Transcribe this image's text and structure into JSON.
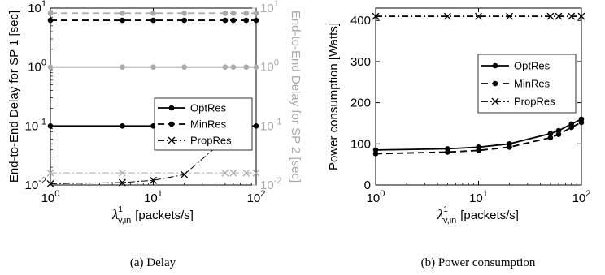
{
  "chart_data": [
    {
      "type": "line",
      "caption": "(a)  Delay",
      "xlabel_symbol": "λ",
      "xlabel_sup": "1",
      "xlabel_sub": "v,in",
      "xlabel_unit": "[packets/s]",
      "ylabel_left": "End-to-End Delay for SP 1 [sec]",
      "ylabel_right": "End-to-End Delay for SP 2 [sec]",
      "xscale": "log",
      "yscale": "log",
      "xlim": [
        1,
        100
      ],
      "ylim": [
        0.01,
        10
      ],
      "xticks": [
        1,
        10,
        100
      ],
      "xtick_labels": [
        {
          "base": "10",
          "exp": "0"
        },
        {
          "base": "10",
          "exp": "1"
        },
        {
          "base": "10",
          "exp": "2"
        }
      ],
      "yticks": [
        0.01,
        0.1,
        1,
        10
      ],
      "ytick_labels": [
        {
          "base": "10",
          "exp": "-2"
        },
        {
          "base": "10",
          "exp": "-1"
        },
        {
          "base": "10",
          "exp": "0"
        },
        {
          "base": "10",
          "exp": "1"
        }
      ],
      "grid": false,
      "legend_position": "right",
      "series": [
        {
          "name": "OptRes",
          "axis": "left",
          "color": "#000000",
          "style": "solid",
          "marker": "dot",
          "x": [
            1,
            5,
            10,
            20,
            50,
            60,
            80,
            100
          ],
          "y": [
            0.1,
            0.1,
            0.1,
            0.1,
            0.1,
            0.1,
            0.1,
            0.1
          ]
        },
        {
          "name": "MinRes",
          "axis": "left",
          "color": "#000000",
          "style": "dashed",
          "marker": "dot",
          "x": [
            1,
            5,
            10,
            20,
            50,
            60,
            80,
            100
          ],
          "y": [
            6.2,
            6.2,
            6.2,
            6.2,
            6.2,
            6.2,
            6.2,
            6.2
          ]
        },
        {
          "name": "PropRes",
          "axis": "left",
          "color": "#000000",
          "style": "dashdot",
          "marker": "x",
          "x": [
            1,
            5,
            10,
            20,
            50
          ],
          "y": [
            0.0105,
            0.011,
            0.012,
            0.015,
            0.06
          ]
        },
        {
          "axis": "right",
          "color": "#aaaaaa",
          "style": "solid",
          "marker": "dot",
          "x": [
            1,
            5,
            10,
            20,
            50,
            60,
            80,
            100
          ],
          "y": [
            1,
            1,
            1,
            1,
            1,
            1,
            1,
            1
          ]
        },
        {
          "axis": "right",
          "color": "#aaaaaa",
          "style": "dashed",
          "marker": "dot",
          "x": [
            1,
            5,
            10,
            20,
            50,
            60,
            80,
            100
          ],
          "y": [
            8.2,
            8.2,
            8.2,
            8.2,
            8.2,
            8.2,
            8.2,
            8.2
          ]
        },
        {
          "axis": "right",
          "color": "#aaaaaa",
          "style": "dashdot",
          "marker": "x",
          "x": [
            1,
            5,
            50,
            60,
            80,
            100
          ],
          "y": [
            0.016,
            0.016,
            0.016,
            0.016,
            0.016,
            0.016
          ]
        }
      ]
    },
    {
      "type": "line",
      "caption": "(b)  Power consumption",
      "xlabel_symbol": "λ",
      "xlabel_sup": "1",
      "xlabel_sub": "v,in",
      "xlabel_unit": "[packets/s]",
      "ylabel": "Power consumption [Watts]",
      "xscale": "log",
      "yscale": "linear",
      "xlim": [
        1,
        100
      ],
      "ylim": [
        0,
        430
      ],
      "xticks": [
        1,
        10,
        100
      ],
      "xtick_labels": [
        {
          "base": "10",
          "exp": "0"
        },
        {
          "base": "10",
          "exp": "1"
        },
        {
          "base": "10",
          "exp": "2"
        }
      ],
      "yticks": [
        0,
        100,
        200,
        300,
        400
      ],
      "ytick_labels": [
        "0",
        "100",
        "200",
        "300",
        "400"
      ],
      "grid": false,
      "legend_position": "right",
      "series": [
        {
          "name": "OptRes",
          "color": "#000000",
          "style": "solid",
          "marker": "dot",
          "x": [
            1,
            5,
            10,
            20,
            50,
            60,
            80,
            100
          ],
          "y": [
            85,
            88,
            92,
            100,
            125,
            132,
            148,
            160
          ]
        },
        {
          "name": "MinRes",
          "color": "#000000",
          "style": "dashed",
          "marker": "dot",
          "x": [
            1,
            5,
            10,
            20,
            50,
            60,
            80,
            100
          ],
          "y": [
            76,
            80,
            84,
            92,
            115,
            123,
            140,
            152
          ]
        },
        {
          "name": "PropRes",
          "color": "#000000",
          "style": "dashdot",
          "marker": "x",
          "x": [
            1,
            5,
            10,
            20,
            50,
            60,
            80,
            100
          ],
          "y": [
            410,
            410,
            410,
            410,
            410,
            410,
            410,
            410
          ]
        }
      ]
    }
  ]
}
